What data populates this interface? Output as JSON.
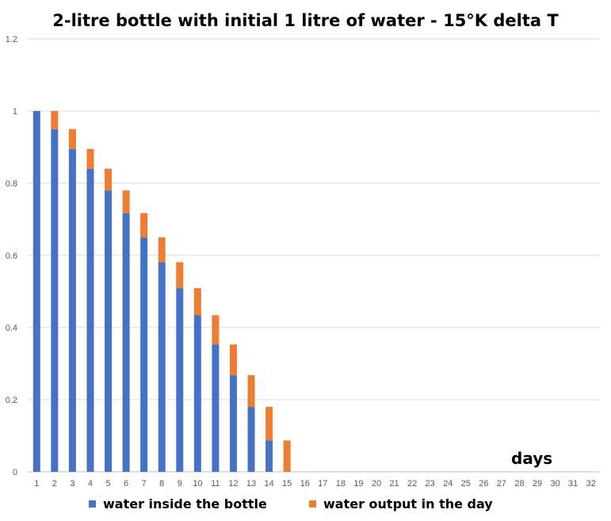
{
  "chart_data": {
    "type": "bar",
    "stacked": true,
    "title": "2-litre bottle with initial 1 litre of water - 15°K delta T",
    "xlabel": "days",
    "ylabel": "",
    "ylim": [
      0,
      1.2
    ],
    "yticks": [
      "0",
      "0.2",
      "0.4",
      "0.6",
      "0.8",
      "1",
      "1.2"
    ],
    "grid": true,
    "legend_position": "bottom",
    "categories": [
      "1",
      "2",
      "3",
      "4",
      "5",
      "6",
      "7",
      "8",
      "9",
      "10",
      "11",
      "12",
      "13",
      "14",
      "15",
      "16",
      "17",
      "18",
      "19",
      "20",
      "21",
      "22",
      "23",
      "24",
      "25",
      "26",
      "27",
      "28",
      "29",
      "30",
      "31",
      "32"
    ],
    "series": [
      {
        "name": "water inside the bottle",
        "color": "#4472C4",
        "values": [
          1,
          0.95,
          0.895,
          0.84,
          0.78,
          0.717,
          0.65,
          0.581,
          0.509,
          0.434,
          0.353,
          0.268,
          0.18,
          0.087,
          0,
          0,
          0,
          0,
          0,
          0,
          0,
          0,
          0,
          0,
          0,
          0,
          0,
          0,
          0,
          0,
          0,
          0
        ]
      },
      {
        "name": "water output in the day",
        "color": "#ED7D31",
        "values": [
          0,
          0.05,
          0.055,
          0.055,
          0.06,
          0.063,
          0.067,
          0.069,
          0.072,
          0.075,
          0.081,
          0.085,
          0.088,
          0.093,
          0.087,
          0,
          0,
          0,
          0,
          0,
          0,
          0,
          0,
          0,
          0,
          0,
          0,
          0,
          0,
          0,
          0,
          0
        ]
      }
    ]
  }
}
